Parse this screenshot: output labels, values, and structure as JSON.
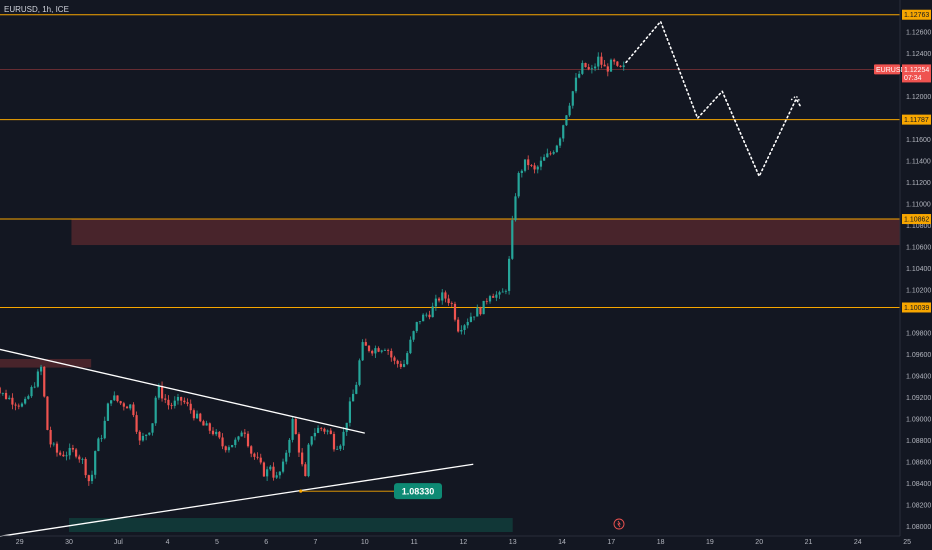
{
  "header": {
    "symbol_line": "EURUSD, 1h, ICE"
  },
  "colors": {
    "background": "#131722",
    "bull": "#26a69a",
    "bear": "#ef5350",
    "level_line": "#f7a600",
    "supply_zone": "#5b2a2f",
    "demand_zone": "#123b3a",
    "trend_line": "#ffffff",
    "callout": "#0e8a74"
  },
  "chart_data": {
    "type": "candlestick",
    "symbol": "EURUSD",
    "timeframe": "1h",
    "source": "ICE",
    "y_axis": {
      "ylim": [
        1.0795,
        1.129
      ],
      "ticks": [
        "1.12600",
        "1.12400",
        "1.12000",
        "1.11600",
        "1.11400",
        "1.11200",
        "1.11000",
        "1.10800",
        "1.10600",
        "1.10400",
        "1.10200",
        "1.09800",
        "1.09600",
        "1.09400",
        "1.09200",
        "1.09000",
        "1.08800",
        "1.08600",
        "1.08400",
        "1.08200",
        "1.08000"
      ],
      "tick_values": [
        1.126,
        1.124,
        1.12,
        1.116,
        1.114,
        1.112,
        1.11,
        1.108,
        1.106,
        1.104,
        1.102,
        1.098,
        1.096,
        1.094,
        1.092,
        1.09,
        1.088,
        1.086,
        1.084,
        1.082,
        1.08
      ]
    },
    "x_axis": {
      "labels": [
        "29",
        "30",
        "Jul",
        "4",
        "5",
        "6",
        "7",
        "10",
        "11",
        "12",
        "13",
        "14",
        "17",
        "18",
        "19",
        "20",
        "21",
        "24",
        "25"
      ],
      "label_days": [
        -1,
        0,
        1,
        2,
        3,
        4,
        5,
        6,
        7,
        8,
        9,
        10,
        11,
        12,
        13,
        14,
        15,
        16,
        17
      ]
    },
    "price_levels": [
      {
        "label": "1.12763",
        "value": 1.12763
      },
      {
        "label": "1.11787",
        "value": 1.11787
      },
      {
        "label": "1.10862",
        "value": 1.10862
      },
      {
        "label": "1.10039",
        "value": 1.10039
      }
    ],
    "current_price": {
      "symbol": "EURUSD",
      "label": "1.12254",
      "value": 1.12254,
      "countdown": "07:34"
    },
    "callout": {
      "label": "1.08330",
      "value": 1.0833,
      "day": 4.7
    },
    "zones": [
      {
        "kind": "supply",
        "from_day": 0.05,
        "to_day": 17.0,
        "top": 1.10862,
        "bottom": 1.1062
      },
      {
        "kind": "supply",
        "from_day": -1.6,
        "to_day": 0.45,
        "top": 1.0956,
        "bottom": 1.0948
      },
      {
        "kind": "demand",
        "from_day": 0.0,
        "to_day": 9.0,
        "top": 1.0808,
        "bottom": 1.0795
      }
    ],
    "trend_lines": [
      {
        "from": [
          -1.6,
          1.0967
        ],
        "to": [
          6.0,
          1.0887
        ]
      },
      {
        "from": [
          -1.4,
          1.0791
        ],
        "to": [
          8.2,
          1.0858
        ]
      }
    ],
    "projection": [
      [
        11.3,
        1.1232
      ],
      [
        12.0,
        1.127
      ],
      [
        12.75,
        1.118
      ],
      [
        13.25,
        1.1205
      ],
      [
        14.0,
        1.1126
      ],
      [
        14.75,
        1.1198
      ],
      [
        14.85,
        1.119
      ]
    ],
    "waypoints": [
      [
        -1.6,
        1.0962
      ],
      [
        -1.35,
        1.0925
      ],
      [
        -1.1,
        1.0918
      ],
      [
        -0.85,
        1.0912
      ],
      [
        -0.65,
        1.0932
      ],
      [
        -0.5,
        1.0948
      ],
      [
        -0.35,
        1.088
      ],
      [
        -0.15,
        1.0867
      ],
      [
        0.2,
        1.087
      ],
      [
        0.35,
        1.086
      ],
      [
        0.5,
        1.0838
      ],
      [
        0.6,
        1.0872
      ],
      [
        0.75,
        1.0888
      ],
      [
        0.9,
        1.0922
      ],
      [
        1.1,
        1.0915
      ],
      [
        1.35,
        1.0912
      ],
      [
        1.5,
        1.0878
      ],
      [
        1.75,
        1.0895
      ],
      [
        1.85,
        1.093
      ],
      [
        2.1,
        1.0912
      ],
      [
        2.35,
        1.0918
      ],
      [
        2.55,
        1.0908
      ],
      [
        2.75,
        1.0895
      ],
      [
        3.0,
        1.0888
      ],
      [
        3.2,
        1.0874
      ],
      [
        3.5,
        1.088
      ],
      [
        3.6,
        1.0895
      ],
      [
        3.75,
        1.087
      ],
      [
        3.9,
        1.086
      ],
      [
        4.05,
        1.0848
      ],
      [
        4.15,
        1.0858
      ],
      [
        4.25,
        1.0843
      ],
      [
        4.4,
        1.0855
      ],
      [
        4.6,
        1.0898
      ],
      [
        4.75,
        1.0868
      ],
      [
        4.85,
        1.084
      ],
      [
        4.95,
        1.0885
      ],
      [
        5.15,
        1.0892
      ],
      [
        5.35,
        1.0888
      ],
      [
        5.45,
        1.0875
      ],
      [
        5.6,
        1.088
      ],
      [
        5.75,
        1.091
      ],
      [
        5.9,
        1.0935
      ],
      [
        6.0,
        1.0968
      ],
      [
        6.2,
        1.0965
      ],
      [
        6.5,
        1.0968
      ],
      [
        6.65,
        1.0953
      ],
      [
        6.85,
        1.095
      ],
      [
        7.0,
        1.0973
      ],
      [
        7.15,
        1.0992
      ],
      [
        7.4,
        1.1
      ],
      [
        7.6,
        1.1015
      ],
      [
        7.75,
        1.1012
      ],
      [
        7.85,
        1.1005
      ],
      [
        7.95,
        1.0985
      ],
      [
        8.1,
        1.099
      ],
      [
        8.25,
        1.0998
      ],
      [
        8.45,
        1.1003
      ],
      [
        8.6,
        1.1018
      ],
      [
        8.8,
        1.1014
      ],
      [
        8.92,
        1.102
      ],
      [
        9.0,
        1.105
      ],
      [
        9.1,
        1.1105
      ],
      [
        9.2,
        1.113
      ],
      [
        9.35,
        1.114
      ],
      [
        9.5,
        1.113
      ],
      [
        9.7,
        1.1142
      ],
      [
        9.85,
        1.1148
      ],
      [
        10.0,
        1.116
      ],
      [
        10.15,
        1.1185
      ],
      [
        10.35,
        1.1215
      ],
      [
        10.5,
        1.123
      ],
      [
        10.65,
        1.1222
      ],
      [
        10.8,
        1.1235
      ],
      [
        10.95,
        1.1225
      ],
      [
        11.1,
        1.1232
      ],
      [
        11.2,
        1.1224
      ],
      [
        11.3,
        1.1226
      ]
    ]
  }
}
